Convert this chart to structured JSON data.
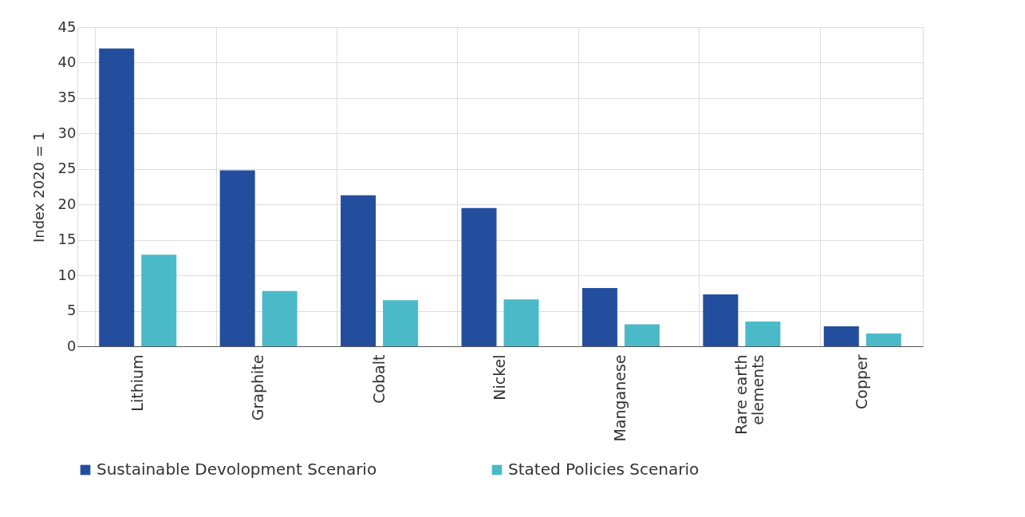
{
  "chart_data": {
    "type": "bar",
    "ylabel": "Index 2020 = 1",
    "categories": [
      "Lithium",
      "Graphite",
      "Cobalt",
      "Nickel",
      "Manganese",
      "Rare earth elements",
      "Copper"
    ],
    "series": [
      {
        "name": "Sustainable Devolopment Scenario",
        "color": "#234e9e",
        "values": [
          42.0,
          24.8,
          21.3,
          19.5,
          8.2,
          7.3,
          2.8
        ]
      },
      {
        "name": "Stated Policies Scenario",
        "color": "#4bbac8",
        "values": [
          12.9,
          7.8,
          6.5,
          6.6,
          3.1,
          3.5,
          1.8
        ]
      }
    ],
    "ylim": [
      0,
      45
    ],
    "yticks": [
      0,
      5,
      10,
      15,
      20,
      25,
      30,
      35,
      40,
      45
    ],
    "grid": true,
    "legend": "bottom"
  }
}
